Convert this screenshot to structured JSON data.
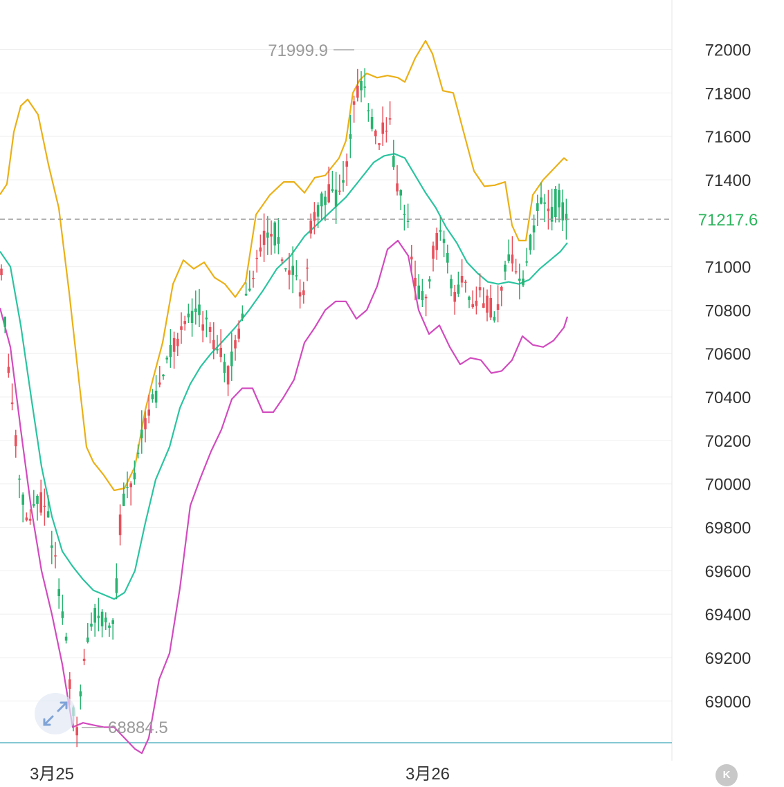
{
  "chart_data": {
    "type": "candlestick",
    "y_ticks": [
      "72000",
      "71800",
      "71600",
      "71400",
      "71000",
      "70800",
      "70600",
      "70400",
      "70200",
      "70000",
      "69800",
      "69600",
      "69400",
      "69200",
      "69000"
    ],
    "ylim": [
      68700,
      72200
    ],
    "x_ticks": [
      "3月25",
      "3月26"
    ],
    "current_price": "71217.6",
    "max_marker": "71999.9",
    "min_marker": "68884.5",
    "colors": {
      "up": "#e8505b",
      "down": "#28b36f",
      "upper_band": "#ebb017",
      "middle_band": "#2bc4a0",
      "lower_band": "#d24bbf",
      "grid": "#eeeeee",
      "price_line": "#999999",
      "current_price": "#2db55d"
    }
  },
  "controls": {
    "expand_icon": "expand-arrows-icon",
    "kline_button_label": "K"
  }
}
